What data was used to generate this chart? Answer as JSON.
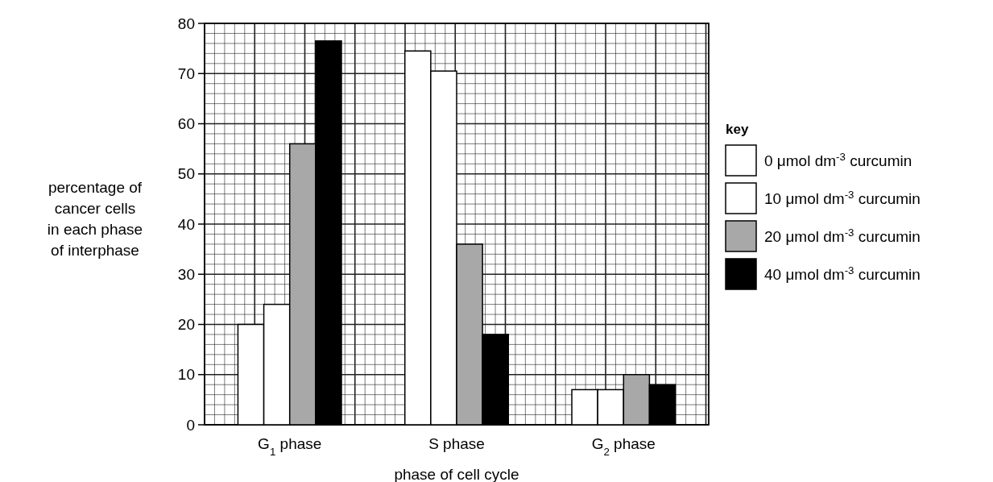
{
  "chart_data": {
    "type": "bar",
    "xlabel": "phase of cell cycle",
    "ylabel": "percentage of\ncancer cells\nin each phase\nof interphase",
    "legend_title": "key",
    "categories": [
      "G$_{1}$ phase",
      "S phase",
      "G$_{2}$ phase"
    ],
    "series": [
      {
        "name": "0 μmol dm$^{-3}$ curcumin",
        "color": "#ffffff",
        "values": [
          20,
          74.5,
          7
        ]
      },
      {
        "name": "10 μmol dm$^{-3}$ curcumin",
        "color": "#ffffff",
        "values": [
          24,
          70.5,
          7
        ]
      },
      {
        "name": "20 μmol dm$^{-3}$ curcumin",
        "color": "#a8a8a8",
        "values": [
          56,
          36,
          10
        ]
      },
      {
        "name": "40 μmol dm$^{-3}$ curcumin",
        "color": "#000000",
        "values": [
          76.5,
          18,
          8
        ]
      }
    ],
    "ylim": [
      0,
      80
    ],
    "yticks": [
      0,
      10,
      20,
      30,
      40,
      50,
      60,
      70,
      80
    ],
    "grid": true,
    "legend": "right"
  }
}
